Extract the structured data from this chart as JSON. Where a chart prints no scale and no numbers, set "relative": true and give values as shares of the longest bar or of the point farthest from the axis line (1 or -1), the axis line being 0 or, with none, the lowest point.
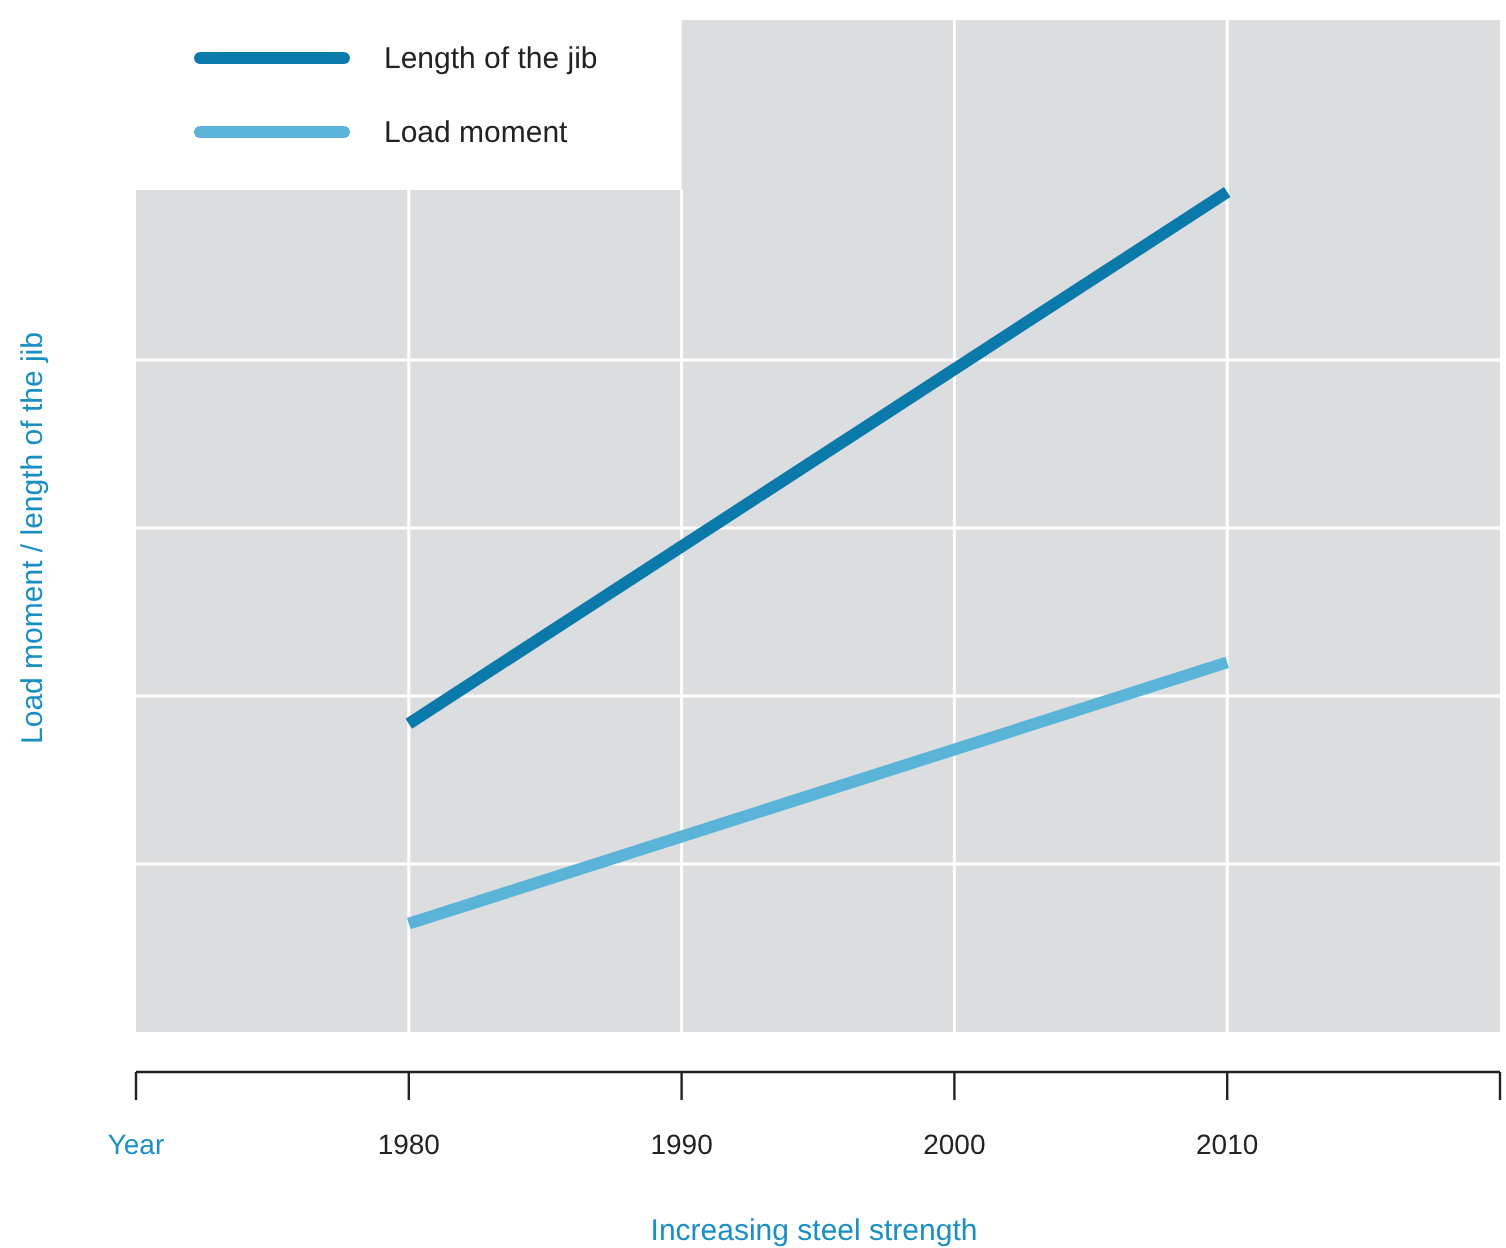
{
  "chart_data": {
    "type": "line",
    "relative": true,
    "xlabel": "Increasing steel strength",
    "ylabel": "Load moment / length of the jib",
    "x": [
      1980,
      2010
    ],
    "xlim": [
      1970,
      2020
    ],
    "xticks": [
      {
        "value": 1970,
        "label": "Year"
      },
      1980,
      1990,
      2000,
      2010,
      {
        "value": 2020,
        "label": null
      }
    ],
    "series": [
      {
        "name": "Length of the jib",
        "color": "#0a7aab",
        "values": [
          0.367,
          1
        ]
      },
      {
        "name": "Load moment",
        "color": "#5ab4d8",
        "values": [
          0.129,
          0.44
        ]
      }
    ],
    "grid": true,
    "legend": "top left",
    "line_style": "solid"
  }
}
